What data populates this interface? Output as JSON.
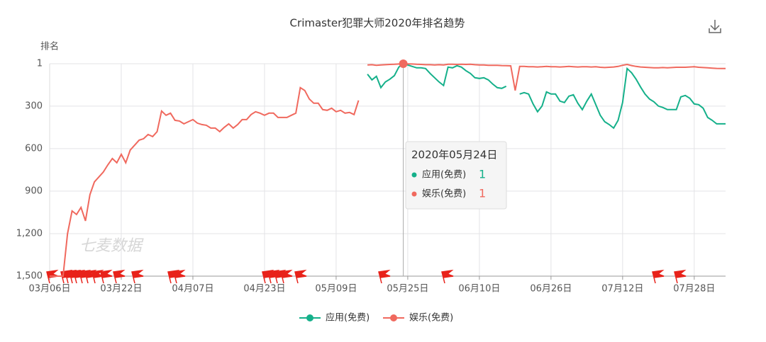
{
  "chart_data": {
    "type": "line",
    "title": "Crimaster犯罪大师2020年排名趋势",
    "y_label": "排名",
    "watermark": "七麦数据",
    "categories": [
      "03月06日",
      null,
      null,
      null,
      null,
      null,
      null,
      null,
      null,
      null,
      null,
      null,
      null,
      null,
      null,
      null,
      "03月22日",
      null,
      null,
      null,
      null,
      null,
      null,
      null,
      null,
      null,
      null,
      null,
      null,
      null,
      null,
      null,
      "04月07日",
      null,
      null,
      null,
      null,
      null,
      null,
      null,
      null,
      null,
      null,
      null,
      null,
      null,
      null,
      null,
      "04月23日",
      null,
      null,
      null,
      null,
      null,
      null,
      null,
      null,
      null,
      null,
      null,
      null,
      null,
      null,
      null,
      "05月09日",
      null,
      null,
      null,
      null,
      null,
      null,
      null,
      null,
      null,
      null,
      null,
      null,
      null,
      null,
      null,
      "05月25日",
      null,
      null,
      null,
      null,
      null,
      null,
      null,
      null,
      null,
      null,
      null,
      null,
      null,
      null,
      null,
      "06月10日",
      null,
      null,
      null,
      null,
      null,
      null,
      null,
      null,
      null,
      null,
      null,
      null,
      null,
      null,
      null,
      "06月26日",
      null,
      null,
      null,
      null,
      null,
      null,
      null,
      null,
      null,
      null,
      null,
      null,
      null,
      null,
      null,
      "07月12日",
      null,
      null,
      null,
      null,
      null,
      null,
      null,
      null,
      null,
      null,
      null,
      null,
      null,
      null,
      null,
      "07月28日",
      null,
      null,
      null,
      null,
      null,
      null,
      null
    ],
    "series": [
      {
        "name": "应用(免费)",
        "color": "#15b08a",
        "values": [
          null,
          null,
          null,
          null,
          null,
          null,
          null,
          null,
          null,
          null,
          null,
          null,
          null,
          null,
          null,
          null,
          null,
          null,
          null,
          null,
          null,
          null,
          null,
          null,
          null,
          null,
          null,
          null,
          null,
          null,
          null,
          null,
          null,
          null,
          null,
          null,
          null,
          null,
          null,
          null,
          null,
          null,
          null,
          null,
          null,
          null,
          null,
          null,
          null,
          null,
          null,
          null,
          null,
          null,
          null,
          null,
          null,
          null,
          null,
          null,
          null,
          null,
          null,
          null,
          null,
          null,
          null,
          null,
          null,
          null,
          null,
          75,
          115,
          90,
          170,
          130,
          110,
          85,
          25,
          1,
          10,
          20,
          30,
          30,
          35,
          70,
          100,
          130,
          155,
          25,
          30,
          15,
          25,
          50,
          70,
          100,
          105,
          100,
          115,
          145,
          170,
          175,
          160,
          null,
          null,
          215,
          205,
          215,
          285,
          340,
          300,
          200,
          215,
          215,
          265,
          275,
          230,
          220,
          280,
          325,
          265,
          215,
          290,
          365,
          410,
          430,
          455,
          400,
          275,
          35,
          65,
          110,
          165,
          215,
          250,
          270,
          300,
          310,
          325,
          325,
          325,
          235,
          225,
          245,
          285,
          290,
          315,
          380,
          400,
          425,
          425,
          425
        ]
      },
      {
        "name": "娱乐(免费)",
        "color": "#f0695e",
        "values": [
          1500,
          1500,
          1500,
          1500,
          1200,
          1040,
          1065,
          1015,
          1110,
          925,
          835,
          800,
          765,
          715,
          670,
          700,
          640,
          700,
          610,
          575,
          540,
          530,
          500,
          515,
          480,
          335,
          365,
          350,
          400,
          405,
          425,
          410,
          395,
          420,
          430,
          435,
          455,
          455,
          480,
          450,
          425,
          455,
          430,
          395,
          395,
          360,
          340,
          350,
          365,
          350,
          350,
          380,
          380,
          380,
          365,
          350,
          170,
          190,
          250,
          280,
          280,
          325,
          330,
          315,
          340,
          330,
          350,
          345,
          360,
          260,
          null,
          10,
          8,
          12,
          10,
          8,
          6,
          5,
          3,
          1,
          2,
          3,
          5,
          6,
          8,
          8,
          10,
          8,
          10,
          5,
          5,
          6,
          5,
          6,
          5,
          8,
          10,
          10,
          12,
          12,
          12,
          14,
          15,
          16,
          190,
          20,
          20,
          22,
          22,
          24,
          22,
          20,
          22,
          22,
          24,
          22,
          20,
          22,
          24,
          22,
          22,
          24,
          22,
          26,
          28,
          26,
          24,
          20,
          12,
          6,
          14,
          20,
          24,
          26,
          28,
          30,
          30,
          28,
          30,
          28,
          26,
          26,
          26,
          24,
          22,
          26,
          28,
          30,
          32,
          34,
          35,
          35
        ]
      }
    ],
    "ylim": [
      1500,
      1
    ],
    "yticks": [
      1,
      300,
      600,
      900,
      {
        "value": 1200,
        "label": "1,200"
      },
      {
        "value": 1500,
        "label": "1,500"
      }
    ],
    "grid": true,
    "legend": "bottom",
    "tooltip": {
      "title": "2020年05月24日"
    }
  }
}
